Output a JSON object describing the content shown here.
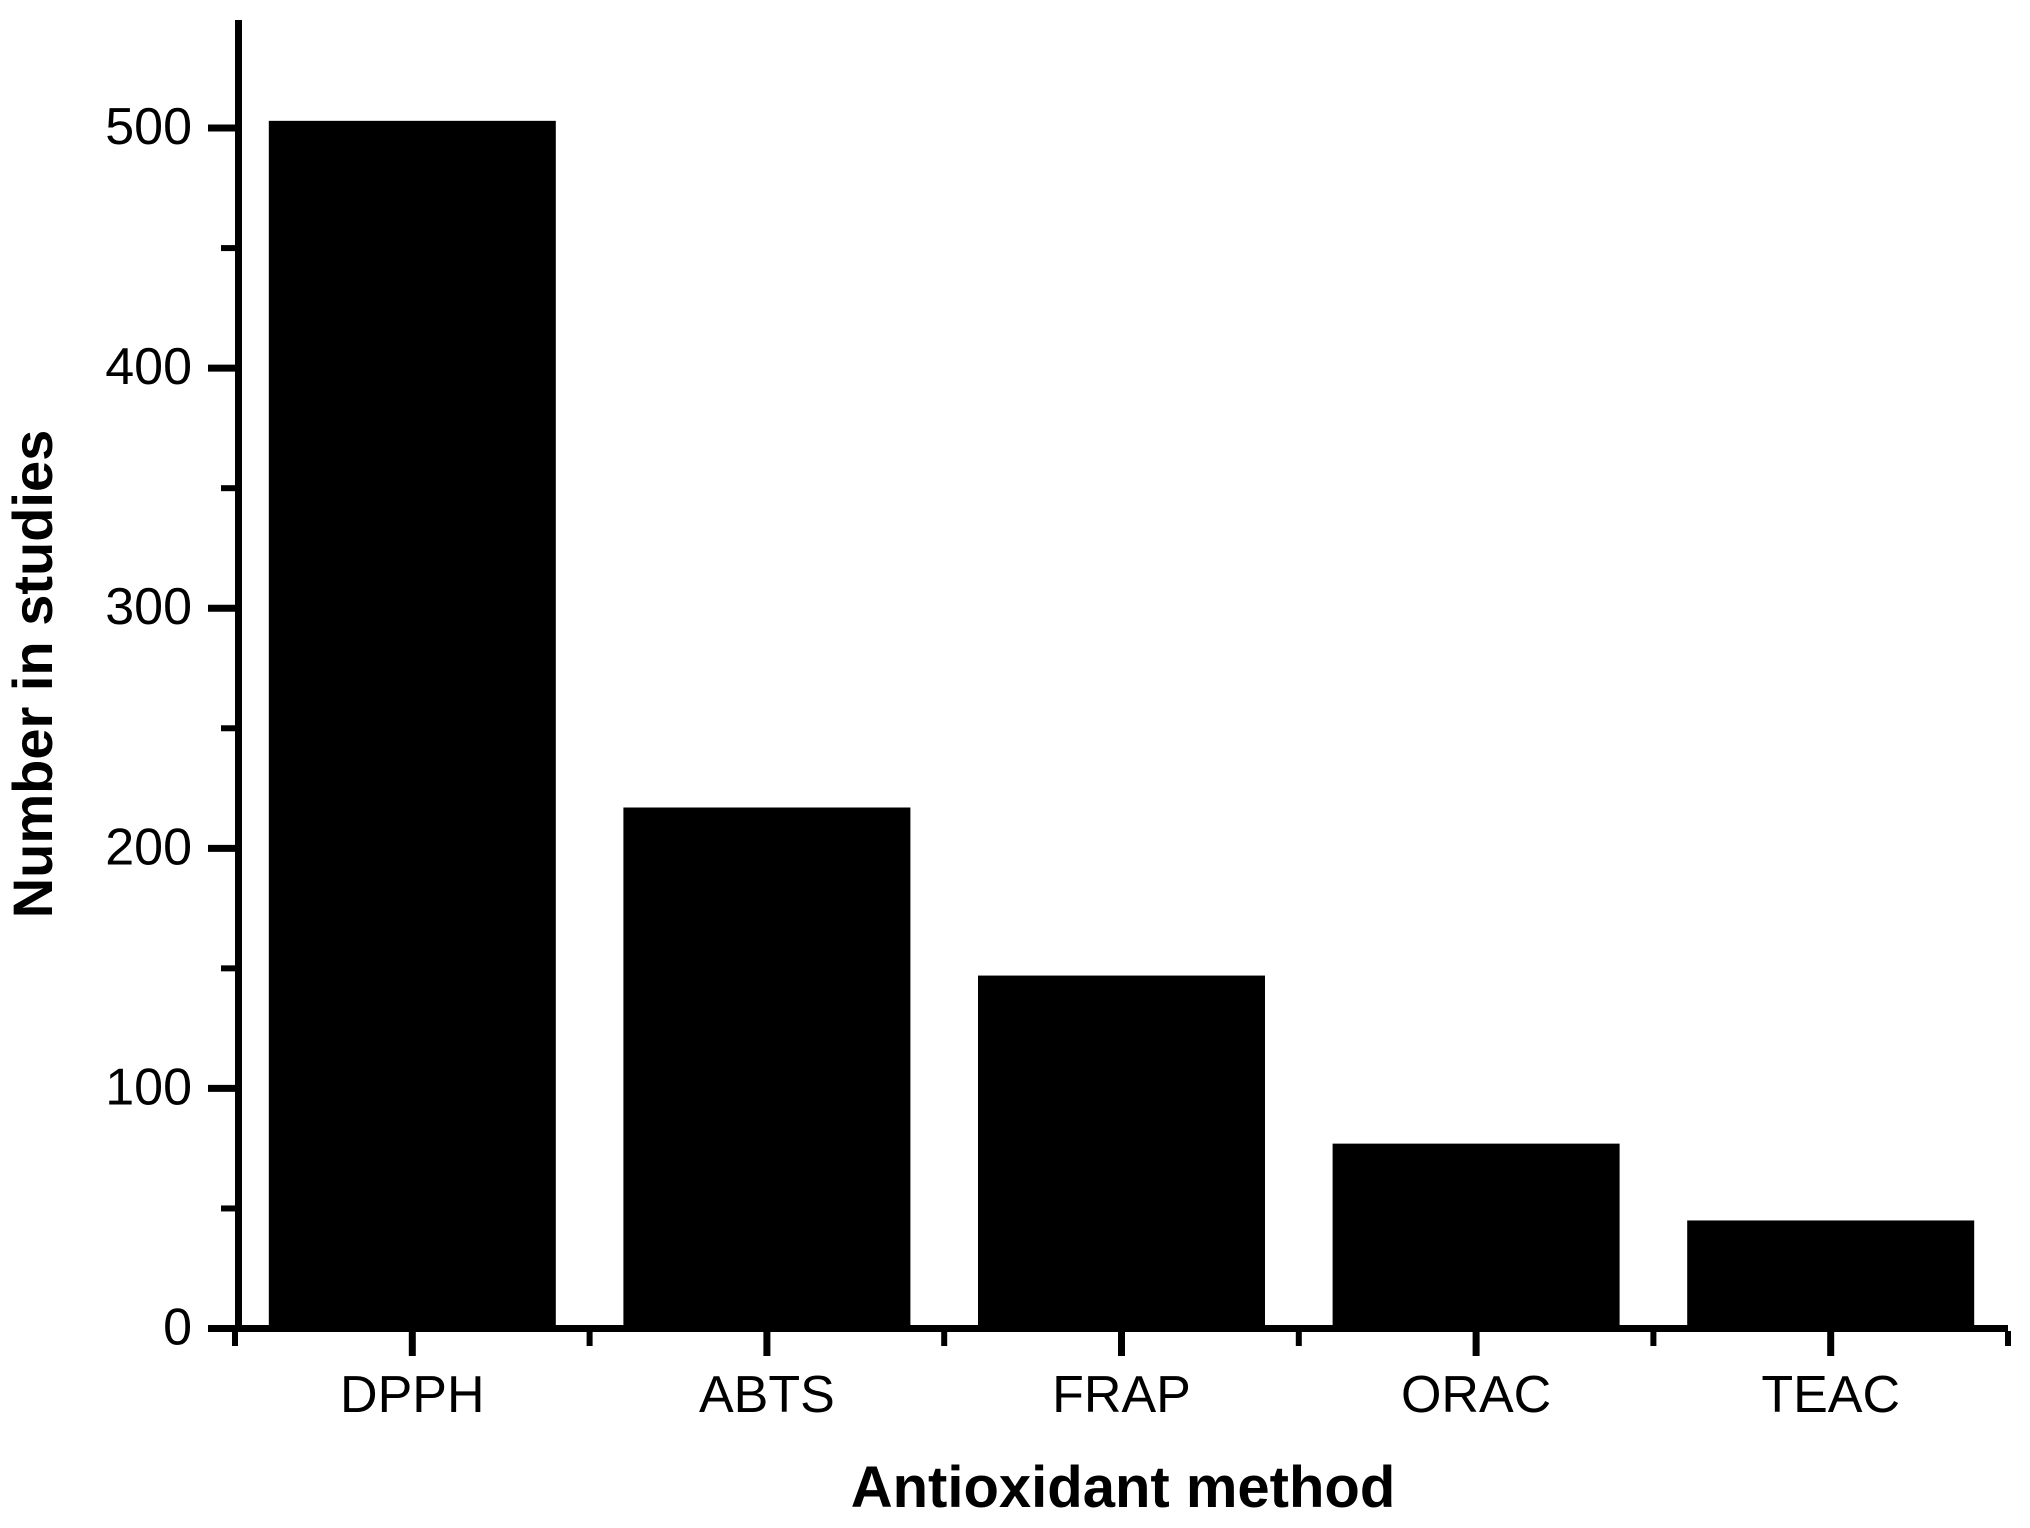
{
  "chart_data": {
    "type": "bar",
    "categories": [
      "DPPH",
      "ABTS",
      "FRAP",
      "ORAC",
      "TEAC"
    ],
    "values": [
      503,
      217,
      147,
      77,
      45
    ],
    "xlabel": "Antioxidant method",
    "ylabel": "Number in studies",
    "y_ticks_major": [
      0,
      100,
      200,
      300,
      400,
      500
    ],
    "y_ticks_minor": [
      50,
      150,
      250,
      350,
      450
    ],
    "ylim": [
      0,
      545
    ],
    "grid": false,
    "legend": false,
    "bar_color": "#000000",
    "axis_color": "#000000",
    "background_color": "#ffffff"
  }
}
